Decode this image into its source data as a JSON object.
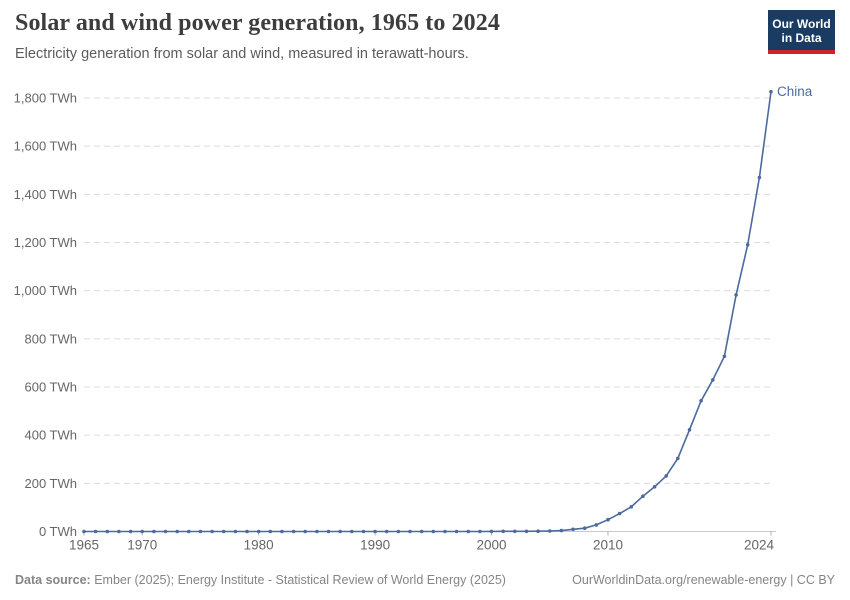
{
  "header": {
    "title": "Solar and wind power generation, 1965 to 2024",
    "subtitle": "Electricity generation from solar and wind, measured in terawatt-hours.",
    "logo": {
      "line1": "Our World",
      "line2": "in Data"
    }
  },
  "footer": {
    "source_label": "Data source:",
    "source_text": " Ember (2025); Energy Institute - Statistical Review of World Energy (2025)",
    "link_text": "OurWorldinData.org/renewable-energy | CC BY"
  },
  "colors": {
    "line": "#4c6a9c",
    "series_label": "#4c6a9c",
    "grid": "#dcdcdc",
    "axis": "#c8c8c8",
    "tick_mark": "#b0b0b0",
    "tick_text": "#666666",
    "logo_bg": "#1a3c63",
    "logo_red": "#cf2427"
  },
  "chart_data": {
    "type": "line",
    "title": "Solar and wind power generation, 1965 to 2024",
    "xlabel": "",
    "ylabel": "TWh",
    "xlim": [
      1965,
      2024
    ],
    "ylim": [
      0,
      1800
    ],
    "grid": "horizontal-dashed",
    "legend": "line-end-label",
    "series": [
      {
        "name": "China",
        "color": "#4c6a9c",
        "x": [
          1965,
          1966,
          1967,
          1968,
          1969,
          1970,
          1971,
          1972,
          1973,
          1974,
          1975,
          1976,
          1977,
          1978,
          1979,
          1980,
          1981,
          1982,
          1983,
          1984,
          1985,
          1986,
          1987,
          1988,
          1989,
          1990,
          1991,
          1992,
          1993,
          1994,
          1995,
          1996,
          1997,
          1998,
          1999,
          2000,
          2001,
          2002,
          2003,
          2004,
          2005,
          2006,
          2007,
          2008,
          2009,
          2010,
          2011,
          2012,
          2013,
          2014,
          2015,
          2016,
          2017,
          2018,
          2019,
          2020,
          2021,
          2022,
          2023,
          2024
        ],
        "values": [
          0,
          0,
          0,
          0,
          0,
          0,
          0,
          0,
          0,
          0,
          0,
          0,
          0,
          0,
          0,
          0,
          0,
          0,
          0,
          0,
          0,
          0.002,
          0.002,
          0.002,
          0.002,
          0.002,
          0.003,
          0.004,
          0.005,
          0.007,
          0.008,
          0.01,
          0.02,
          0.03,
          0.1,
          0.6,
          0.7,
          0.9,
          1.0,
          1.3,
          2.0,
          3.9,
          9.3,
          13.8,
          27.5,
          49.0,
          74.3,
          102.6,
          146.7,
          185.6,
          230.8,
          303.6,
          422.4,
          542.7,
          629.5,
          727.6,
          982.6,
          1190.6,
          1470.1,
          1826.1
        ]
      }
    ],
    "xticks": [
      {
        "value": 1965,
        "label": "1965"
      },
      {
        "value": 1970,
        "label": "1970"
      },
      {
        "value": 1980,
        "label": "1980"
      },
      {
        "value": 1990,
        "label": "1990"
      },
      {
        "value": 2000,
        "label": "2000"
      },
      {
        "value": 2010,
        "label": "2010"
      },
      {
        "value": 2024,
        "label": "2024"
      }
    ],
    "yticks": [
      {
        "value": 0,
        "label": "0 TWh"
      },
      {
        "value": 200,
        "label": "200 TWh"
      },
      {
        "value": 400,
        "label": "400 TWh"
      },
      {
        "value": 600,
        "label": "600 TWh"
      },
      {
        "value": 800,
        "label": "800 TWh"
      },
      {
        "value": 1000,
        "label": "1,000 TWh"
      },
      {
        "value": 1200,
        "label": "1,200 TWh"
      },
      {
        "value": 1400,
        "label": "1,400 TWh"
      },
      {
        "value": 1600,
        "label": "1,600 TWh"
      },
      {
        "value": 1800,
        "label": "1,800 TWh"
      }
    ]
  }
}
